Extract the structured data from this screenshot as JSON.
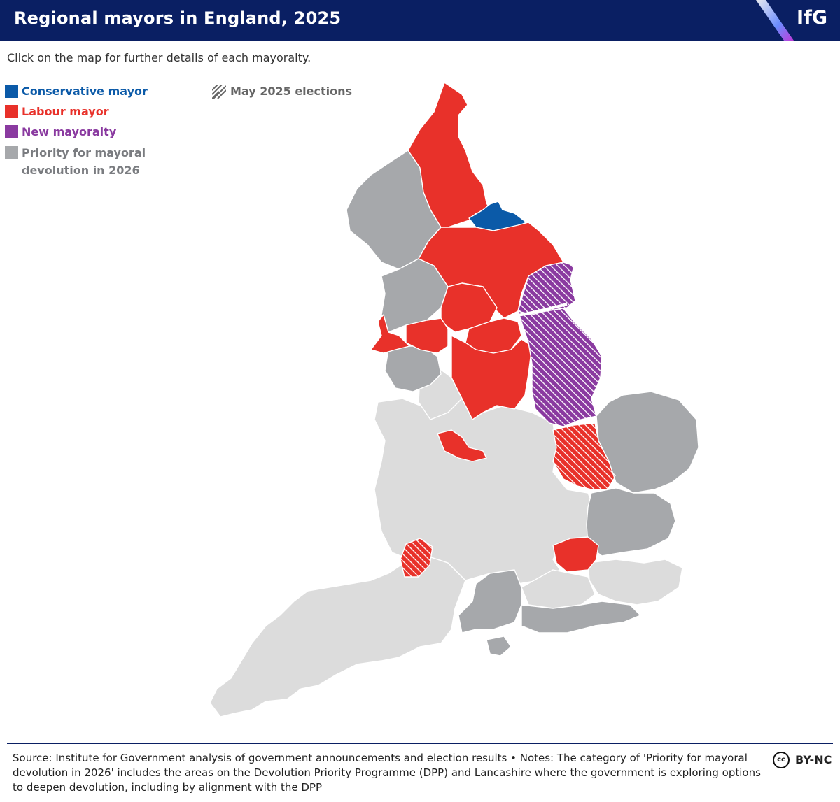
{
  "header": {
    "title": "Regional mayors in England, 2025",
    "logo_text": "IfG"
  },
  "subtitle": "Click on the map for further details of each mayoralty.",
  "legend": {
    "items": [
      {
        "label": "Conservative mayor",
        "color": "#0b5aa8"
      },
      {
        "label": "Labour mayor",
        "color": "#e8312a"
      },
      {
        "label": "New mayoralty",
        "color": "#8a3aa0"
      },
      {
        "label": "Priority for mayoral",
        "label_line2": "devolution in 2026",
        "color": "#a6a8ab"
      }
    ],
    "hatch_label": "May 2025 elections"
  },
  "map": {
    "colors": {
      "conservative": "#0b5aa8",
      "labour": "#e8312a",
      "new_mayoralty": "#8a3aa0",
      "priority": "#a6a8ab",
      "other": "#dcdcdc",
      "border": "#ffffff"
    },
    "regions": [
      {
        "name": "North East",
        "category": "labour",
        "may_2025_election": false
      },
      {
        "name": "Tees Valley",
        "category": "conservative",
        "may_2025_election": false
      },
      {
        "name": "York and North Yorkshire",
        "category": "labour",
        "may_2025_election": false
      },
      {
        "name": "West Yorkshire",
        "category": "labour",
        "may_2025_election": false
      },
      {
        "name": "South Yorkshire",
        "category": "labour",
        "may_2025_election": false
      },
      {
        "name": "Greater Manchester",
        "category": "labour",
        "may_2025_election": false
      },
      {
        "name": "Liverpool City Region",
        "category": "labour",
        "may_2025_election": false
      },
      {
        "name": "East Midlands",
        "category": "labour",
        "may_2025_election": false
      },
      {
        "name": "West Midlands",
        "category": "labour",
        "may_2025_election": false
      },
      {
        "name": "London",
        "category": "labour",
        "may_2025_election": false
      },
      {
        "name": "Cambridgeshire and Peterborough",
        "category": "labour",
        "may_2025_election": true
      },
      {
        "name": "West of England",
        "category": "labour",
        "may_2025_election": true
      },
      {
        "name": "Greater Lincolnshire",
        "category": "new_mayoralty",
        "may_2025_election": true
      },
      {
        "name": "Hull and East Yorkshire",
        "category": "new_mayoralty",
        "may_2025_election": true
      },
      {
        "name": "Cumbria",
        "category": "priority",
        "may_2025_election": false
      },
      {
        "name": "Lancashire",
        "category": "priority",
        "may_2025_election": false
      },
      {
        "name": "Cheshire and Warrington",
        "category": "priority",
        "may_2025_election": false
      },
      {
        "name": "Norfolk and Suffolk",
        "category": "priority",
        "may_2025_election": false
      },
      {
        "name": "Greater Essex",
        "category": "priority",
        "may_2025_election": false
      },
      {
        "name": "Hampshire and the Solent",
        "category": "priority",
        "may_2025_election": false
      },
      {
        "name": "Sussex and Brighton",
        "category": "priority",
        "may_2025_election": false
      }
    ]
  },
  "footer": {
    "source_text": "Source: Institute for Government analysis of government announcements and election results • Notes: The category of 'Priority for mayoral devolution in 2026' includes the areas on the Devolution Priority Programme (DPP) and Lancashire where the government is exploring options to deepen devolution, including by alignment with the DPP",
    "cc_icon_text": "cc",
    "license": "BY-NC"
  }
}
